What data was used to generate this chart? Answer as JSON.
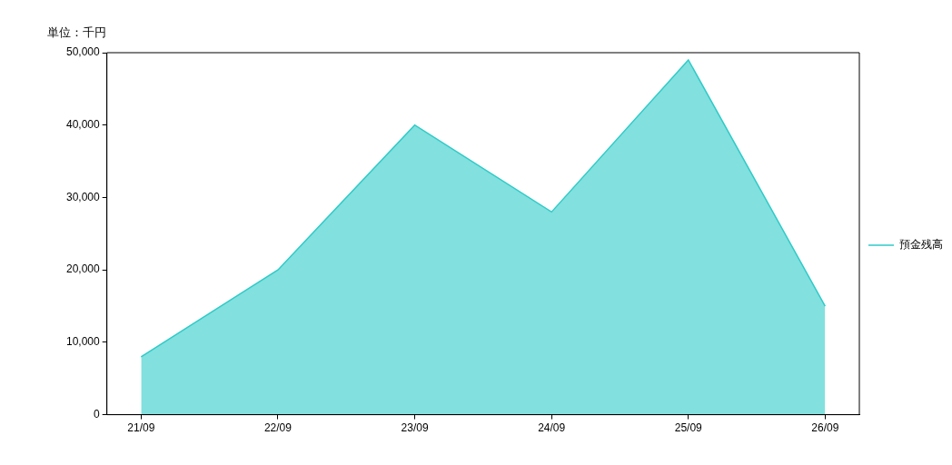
{
  "chart_data": {
    "type": "area",
    "annotations": [
      "単位：千円"
    ],
    "categories": [
      "21/09",
      "22/09",
      "23/09",
      "24/09",
      "25/09",
      "26/09"
    ],
    "series": [
      {
        "name": "預金残高",
        "color": "#2ecbc8",
        "values": [
          8000,
          20000,
          40000,
          28000,
          49000,
          15000
        ]
      }
    ],
    "ylim": [
      0,
      50000
    ],
    "yticks": [
      0,
      {
        "value": 10000,
        "label": "10,000"
      },
      {
        "value": 20000,
        "label": "20,000"
      },
      {
        "value": 30000,
        "label": "30,000"
      },
      {
        "value": 40000,
        "label": "40,000"
      },
      {
        "value": 50000,
        "label": "50,000"
      }
    ],
    "grid": false,
    "legend": "right"
  }
}
